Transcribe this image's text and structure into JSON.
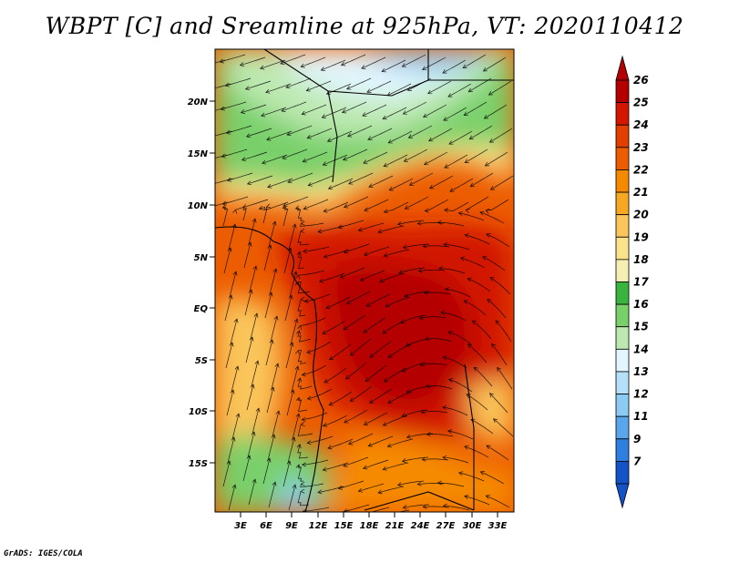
{
  "title": "WBPT [C] and Sreamline at 925hPa, VT: 2020110412",
  "credit": "GrADS: IGES/COLA",
  "map": {
    "lat_labels": [
      "20N",
      "15N",
      "10N",
      "5N",
      "EQ",
      "5S",
      "10S",
      "15S"
    ],
    "lon_labels": [
      "3E",
      "6E",
      "9E",
      "12E",
      "15E",
      "18E",
      "21E",
      "24E",
      "27E",
      "30E",
      "33E"
    ]
  },
  "colorbar": {
    "levels": [
      "26",
      "25",
      "24",
      "23",
      "22",
      "21",
      "20",
      "19",
      "18",
      "17",
      "16",
      "15",
      "14",
      "13",
      "12",
      "11",
      "9",
      "7"
    ],
    "colors": [
      "#b40000",
      "#d21600",
      "#e33d00",
      "#ec5c00",
      "#f58a00",
      "#f6a822",
      "#fac55a",
      "#fbe38c",
      "#f6efb4",
      "#3ab43e",
      "#79d06b",
      "#bde9b1",
      "#e2f6ff",
      "#b4e0fa",
      "#8ccbf4",
      "#5aa6ec",
      "#2f7fe0",
      "#1452c8"
    ]
  }
}
